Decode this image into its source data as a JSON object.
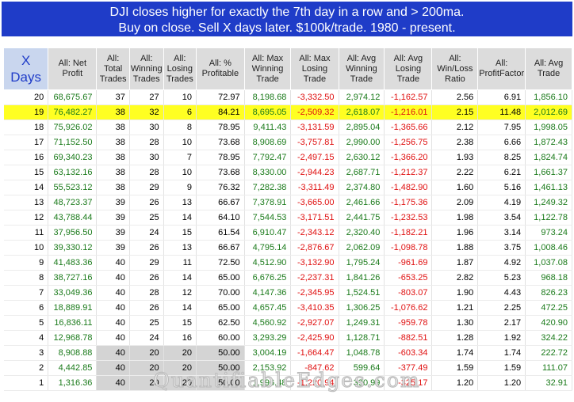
{
  "title": {
    "line1": "DJI closes higher for exactly the 7th day in a row and > 200ma.",
    "line2": "Buy on close. Sell X days later. $100k/trade. 1980 - present."
  },
  "columns": [
    {
      "line1": "X",
      "line2": "Days"
    },
    {
      "line1": "All: Net",
      "line2": "Profit"
    },
    {
      "line1": "All:",
      "line2": "Total",
      "line3": "Trades"
    },
    {
      "line1": "All:",
      "line2": "Winning",
      "line3": "Trades"
    },
    {
      "line1": "All:",
      "line2": "Losing",
      "line3": "Trades"
    },
    {
      "line1": "All: %",
      "line2": "Profitable"
    },
    {
      "line1": "All: Max",
      "line2": "Winning",
      "line3": "Trade"
    },
    {
      "line1": "All: Max",
      "line2": "Losing",
      "line3": "Trade"
    },
    {
      "line1": "All: Avg",
      "line2": "Winning",
      "line3": "Trade"
    },
    {
      "line1": "All: Avg",
      "line2": "Losing",
      "line3": "Trade"
    },
    {
      "line1": "All:",
      "line2": "Win/Loss",
      "line3": "Ratio"
    },
    {
      "line1": "All:",
      "line2": "ProfitFactor"
    },
    {
      "line1": "All: Avg",
      "line2": "Trade"
    }
  ],
  "highlighted_row_days": "19",
  "rows": [
    [
      "20",
      "68,675.67",
      "37",
      "27",
      "10",
      "72.97",
      "8,198.68",
      "-3,332.50",
      "2,974.12",
      "-1,162.57",
      "2.56",
      "6.91",
      "1,856.10"
    ],
    [
      "19",
      "76,482.27",
      "38",
      "32",
      "6",
      "84.21",
      "8,695.05",
      "-2,509.32",
      "2,618.07",
      "-1,216.01",
      "2.15",
      "11.48",
      "2,012.69"
    ],
    [
      "18",
      "75,926.02",
      "38",
      "30",
      "8",
      "78.95",
      "9,411.43",
      "-3,131.59",
      "2,895.04",
      "-1,365.66",
      "2.12",
      "7.95",
      "1,998.05"
    ],
    [
      "17",
      "71,152.50",
      "38",
      "28",
      "10",
      "73.68",
      "8,908.69",
      "-3,757.81",
      "2,990.00",
      "-1,256.75",
      "2.38",
      "6.66",
      "1,872.43"
    ],
    [
      "16",
      "69,340.23",
      "38",
      "30",
      "7",
      "78.95",
      "7,792.47",
      "-2,497.15",
      "2,630.12",
      "-1,366.20",
      "1.93",
      "8.25",
      "1,824.74"
    ],
    [
      "15",
      "63,132.16",
      "38",
      "28",
      "10",
      "73.68",
      "8,330.00",
      "-2,944.23",
      "2,687.71",
      "-1,212.37",
      "2.22",
      "6.21",
      "1,661.37"
    ],
    [
      "14",
      "55,523.12",
      "38",
      "29",
      "9",
      "76.32",
      "7,282.38",
      "-3,311.49",
      "2,374.80",
      "-1,482.90",
      "1.60",
      "5.16",
      "1,461.13"
    ],
    [
      "13",
      "48,723.37",
      "39",
      "26",
      "13",
      "66.67",
      "7,378.91",
      "-3,665.00",
      "2,461.66",
      "-1,175.36",
      "2.09",
      "4.19",
      "1,249.32"
    ],
    [
      "12",
      "43,788.44",
      "39",
      "25",
      "14",
      "64.10",
      "7,544.53",
      "-3,171.51",
      "2,441.75",
      "-1,232.53",
      "1.98",
      "3.54",
      "1,122.78"
    ],
    [
      "11",
      "37,956.50",
      "39",
      "24",
      "15",
      "61.54",
      "6,910.47",
      "-2,343.12",
      "2,320.40",
      "-1,182.21",
      "1.96",
      "3.14",
      "973.24"
    ],
    [
      "10",
      "39,330.12",
      "39",
      "26",
      "13",
      "66.67",
      "4,795.14",
      "-2,876.67",
      "2,062.09",
      "-1,098.78",
      "1.88",
      "3.75",
      "1,008.46"
    ],
    [
      "9",
      "41,483.36",
      "40",
      "29",
      "11",
      "72.50",
      "4,512.90",
      "-3,132.90",
      "1,795.24",
      "-961.69",
      "1.87",
      "4.92",
      "1,037.08"
    ],
    [
      "8",
      "38,727.16",
      "40",
      "26",
      "14",
      "65.00",
      "6,676.25",
      "-2,237.31",
      "1,841.26",
      "-653.25",
      "2.82",
      "5.23",
      "968.18"
    ],
    [
      "7",
      "33,049.36",
      "40",
      "28",
      "12",
      "70.00",
      "4,147.36",
      "-2,345.95",
      "1,524.51",
      "-803.07",
      "1.90",
      "4.43",
      "826.23"
    ],
    [
      "6",
      "18,889.91",
      "40",
      "26",
      "14",
      "65.00",
      "4,657.45",
      "-3,410.35",
      "1,306.25",
      "-1,076.62",
      "1.21",
      "2.25",
      "472.25"
    ],
    [
      "5",
      "16,836.11",
      "40",
      "25",
      "15",
      "62.50",
      "4,560.92",
      "-2,927.07",
      "1,249.31",
      "-959.78",
      "1.30",
      "2.17",
      "420.90"
    ],
    [
      "4",
      "12,968.78",
      "40",
      "24",
      "16",
      "60.00",
      "3,293.29",
      "-2,425.90",
      "1,128.71",
      "-882.51",
      "1.28",
      "1.92",
      "324.22"
    ],
    [
      "3",
      "8,908.88",
      "40",
      "20",
      "20",
      "50.00",
      "3,004.19",
      "-1,664.47",
      "1,048.78",
      "-603.34",
      "1.74",
      "1.74",
      "222.72"
    ],
    [
      "2",
      "4,442.85",
      "40",
      "20",
      "20",
      "50.00",
      "2,153.92",
      "-847.62",
      "599.64",
      "-377.49",
      "1.59",
      "1.59",
      "111.07"
    ],
    [
      "1",
      "1,316.36",
      "40",
      "20",
      "20",
      "50.00",
      "1,996.48",
      "-1,220.94",
      "390.99",
      "-325.17",
      "1.20",
      "1.20",
      "32.91"
    ]
  ],
  "shaded_rows_days": [
    "3",
    "2",
    "1"
  ],
  "colors": {
    "header_bg": "#1f3cc8",
    "highlight": "#ffff22",
    "positive": "#1a7a1a",
    "negative": "#e01010",
    "shaded": "#d4d4d4"
  },
  "watermark": "QuantifiableEdges.com"
}
